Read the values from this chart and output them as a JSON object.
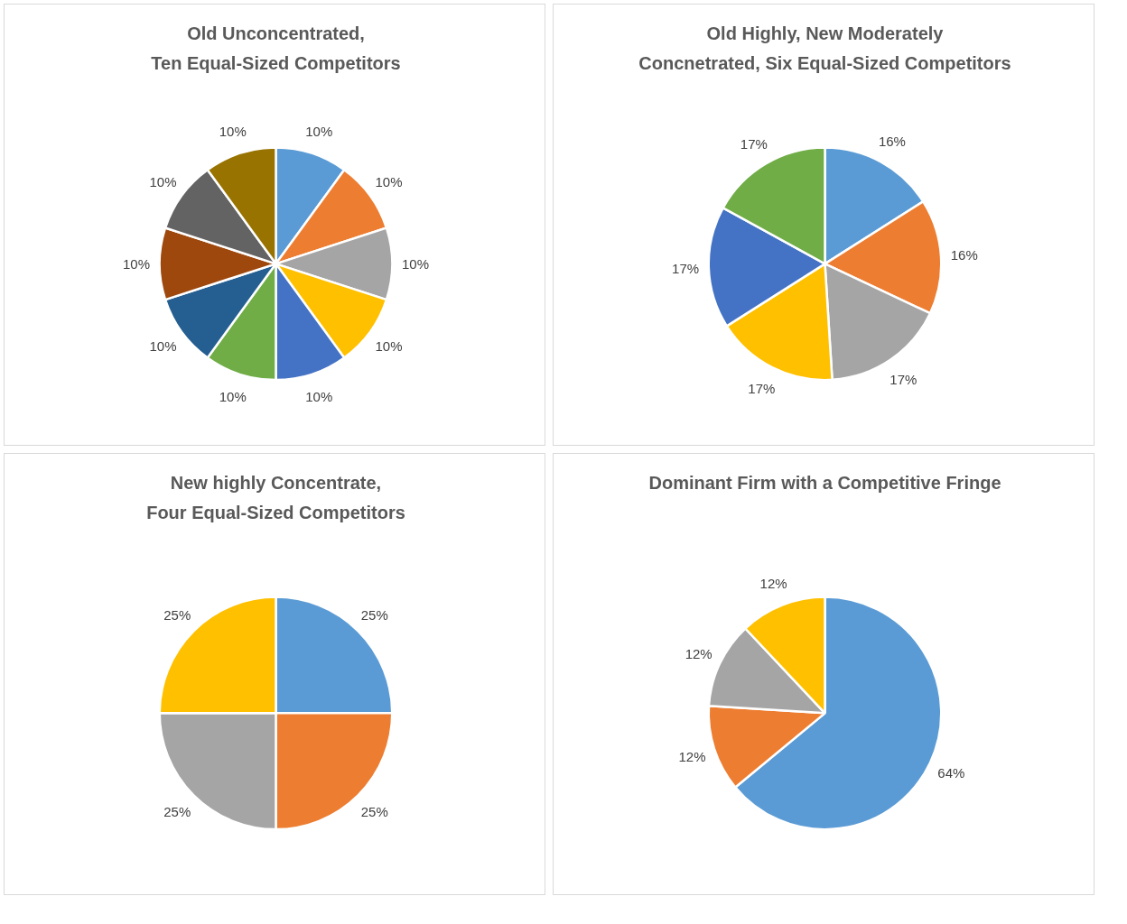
{
  "chart_data": [
    {
      "type": "pie",
      "title": "Old Unconcentrated,\nTen Equal-Sized Competitors",
      "categories": [
        null,
        null,
        null,
        null,
        null,
        null,
        null,
        null,
        null,
        null
      ],
      "values": [
        10,
        10,
        10,
        10,
        10,
        10,
        10,
        10,
        10,
        10
      ],
      "colors": [
        "#5b9bd5",
        "#ed7d31",
        "#a5a5a5",
        "#ffc000",
        "#4472c4",
        "#70ad47",
        "#255e91",
        "#9e480e",
        "#636363",
        "#997300"
      ],
      "value_labels": [
        "10%",
        "10%",
        "10%",
        "10%",
        "10%",
        "10%",
        "10%",
        "10%",
        "10%",
        "10%"
      ]
    },
    {
      "type": "pie",
      "title": "Old Highly, New Moderately\nConcnetrated, Six Equal-Sized Competitors",
      "categories": [
        null,
        null,
        null,
        null,
        null,
        null
      ],
      "values": [
        16,
        16,
        17,
        17,
        17,
        17
      ],
      "colors": [
        "#5b9bd5",
        "#ed7d31",
        "#a5a5a5",
        "#ffc000",
        "#4472c4",
        "#70ad47"
      ],
      "value_labels": [
        "16%",
        "16%",
        "17%",
        "17%",
        "17%",
        "17%"
      ]
    },
    {
      "type": "pie",
      "title": "New highly Concentrate,\nFour Equal-Sized Competitors",
      "categories": [
        null,
        null,
        null,
        null
      ],
      "values": [
        25,
        25,
        25,
        25
      ],
      "colors": [
        "#5b9bd5",
        "#ed7d31",
        "#a5a5a5",
        "#ffc000"
      ],
      "value_labels": [
        "25%",
        "25%",
        "25%",
        "25%"
      ]
    },
    {
      "type": "pie",
      "title": "Dominant Firm with a Competitive Fringe",
      "categories": [
        null,
        null,
        null,
        null
      ],
      "values": [
        64,
        12,
        12,
        12
      ],
      "colors": [
        "#5b9bd5",
        "#ed7d31",
        "#a5a5a5",
        "#ffc000"
      ],
      "value_labels": [
        "64%",
        "12%",
        "12%",
        "12%"
      ]
    }
  ]
}
